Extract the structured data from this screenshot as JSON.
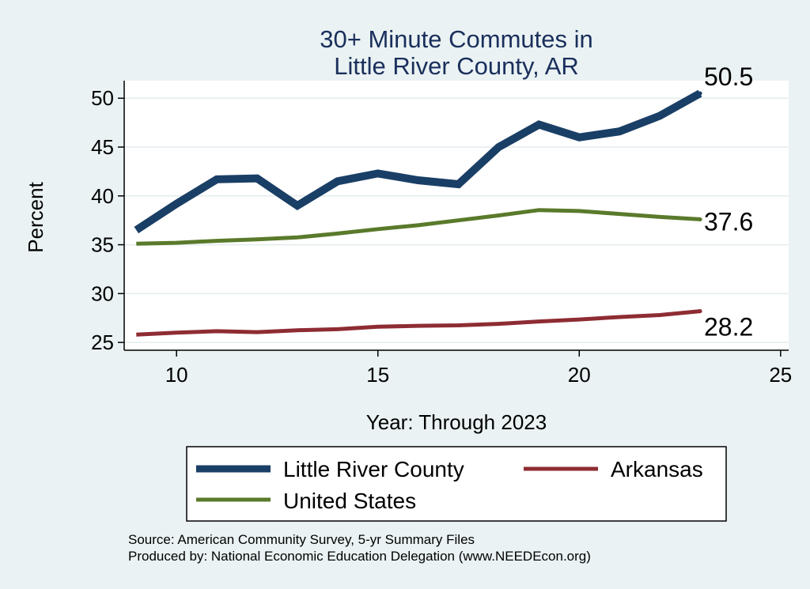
{
  "chart_data": {
    "type": "line",
    "title": [
      "30+ Minute Commutes in",
      "Little River County, AR"
    ],
    "xlabel": "Year: Through 2023",
    "ylabel": "Percent",
    "xlim": [
      8.7,
      25.2
    ],
    "ylim": [
      24.2,
      51.8
    ],
    "xticks": [
      10,
      15,
      20,
      25
    ],
    "yticks": [
      25,
      30,
      35,
      40,
      45,
      50
    ],
    "grid": true,
    "x": [
      9,
      10,
      11,
      12,
      13,
      14,
      15,
      16,
      17,
      18,
      19,
      20,
      21,
      22,
      23
    ],
    "series": [
      {
        "name": "Little River County",
        "color": "#1a3f66",
        "values": [
          36.5,
          39.2,
          41.7,
          41.8,
          39.0,
          41.5,
          42.3,
          41.6,
          41.2,
          45.0,
          47.3,
          46.0,
          46.6,
          48.2,
          50.5
        ],
        "end_label": "50.5"
      },
      {
        "name": "United States",
        "color": "#5a7a2b",
        "values": [
          35.1,
          35.2,
          35.4,
          35.55,
          35.75,
          36.15,
          36.6,
          37.0,
          37.5,
          38.0,
          38.55,
          38.45,
          38.15,
          37.85,
          37.6
        ],
        "end_label": "37.6"
      },
      {
        "name": "Arkansas",
        "color": "#8e2c33",
        "values": [
          25.8,
          26.0,
          26.15,
          26.05,
          26.25,
          26.35,
          26.6,
          26.7,
          26.75,
          26.9,
          27.15,
          27.35,
          27.6,
          27.8,
          28.2
        ],
        "end_label": "28.2"
      }
    ],
    "legend": {
      "placement": "bottom",
      "entries": [
        {
          "label": "Little River County",
          "series": 0
        },
        {
          "label": "Arkansas",
          "series": 2
        },
        {
          "label": "United States",
          "series": 1
        }
      ]
    }
  },
  "notes": {
    "source": "Source: American Community Survey, 5-yr Summary Files",
    "produced": "Produced by: National Economic Education Delegation (www.NEEDEcon.org)"
  }
}
